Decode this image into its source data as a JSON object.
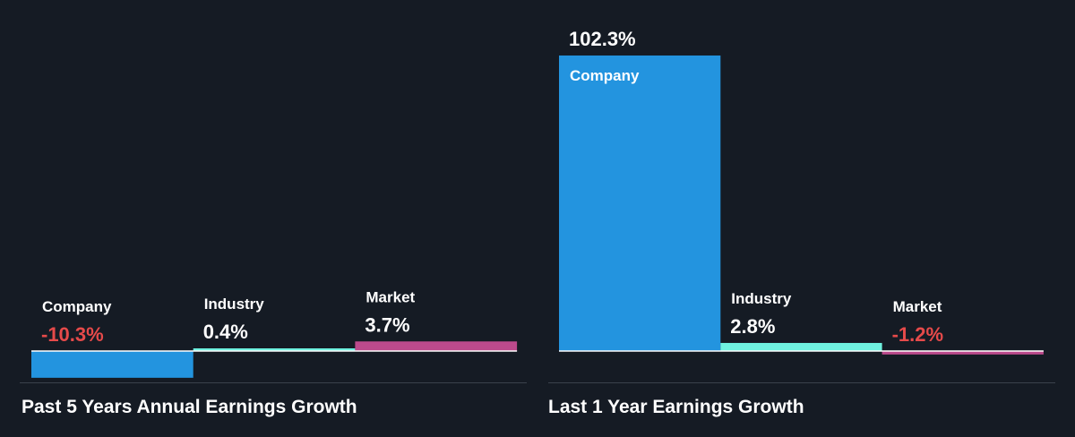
{
  "chart_data": [
    {
      "type": "bar",
      "title": "Past 5 Years Annual Earnings Growth",
      "categories": [
        "Company",
        "Industry",
        "Market"
      ],
      "values": [
        -10.3,
        0.4,
        3.7
      ],
      "value_labels": [
        "-10.3%",
        "0.4%",
        "3.7%"
      ],
      "colors": [
        "#2394df",
        "#6ff2e0",
        "#bc4a8c"
      ],
      "label_colors": [
        "#e64a4a",
        "#ffffff",
        "#ffffff"
      ],
      "unit": "%"
    },
    {
      "type": "bar",
      "title": "Last 1 Year Earnings Growth",
      "categories": [
        "Company",
        "Industry",
        "Market"
      ],
      "values": [
        102.3,
        2.8,
        -1.2
      ],
      "value_labels": [
        "102.3%",
        "2.8%",
        "-1.2%"
      ],
      "colors": [
        "#2394df",
        "#6ff2e0",
        "#bc4a8c"
      ],
      "label_colors": [
        "#ffffff",
        "#ffffff",
        "#e64a4a"
      ],
      "unit": "%"
    }
  ],
  "style": {
    "background": "#151b24",
    "axis_color": "#ffffff",
    "divider_color": "#3a414c"
  }
}
